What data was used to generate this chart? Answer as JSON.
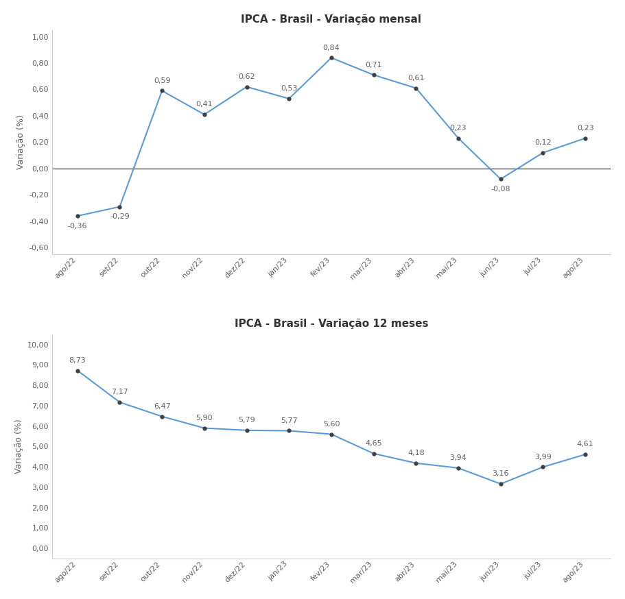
{
  "categories": [
    "ago/22",
    "set/22",
    "out/22",
    "nov/22",
    "dez/22",
    "jan/23",
    "fev/23",
    "mar/23",
    "abr/23",
    "mai/23",
    "jun/23",
    "jul/23",
    "ago/23"
  ],
  "monthly_values": [
    -0.36,
    -0.29,
    0.59,
    0.41,
    0.62,
    0.53,
    0.84,
    0.71,
    0.61,
    0.23,
    -0.08,
    0.12,
    0.23
  ],
  "annual_values": [
    8.73,
    7.17,
    6.47,
    5.9,
    5.79,
    5.77,
    5.6,
    4.65,
    4.18,
    3.94,
    3.16,
    3.99,
    4.61
  ],
  "title1": "IPCA - Brasil - Variação mensal",
  "title2": "IPCA - Brasil - Variação 12 meses",
  "ylabel": "Variação (%)",
  "line_color": "#5b9bd5",
  "marker_color": "#404040",
  "text_color": "#606060",
  "background_color": "#ffffff",
  "ylim1": [
    -0.65,
    1.05
  ],
  "yticks1": [
    -0.6,
    -0.4,
    -0.2,
    0.0,
    0.2,
    0.4,
    0.6,
    0.8,
    1.0
  ],
  "ylim2": [
    -0.5,
    10.5
  ],
  "yticks2": [
    0.0,
    1.0,
    2.0,
    3.0,
    4.0,
    5.0,
    6.0,
    7.0,
    8.0,
    9.0,
    10.0
  ],
  "title_fontsize": 11,
  "label_fontsize": 9,
  "tick_fontsize": 8,
  "annot_fontsize": 8
}
